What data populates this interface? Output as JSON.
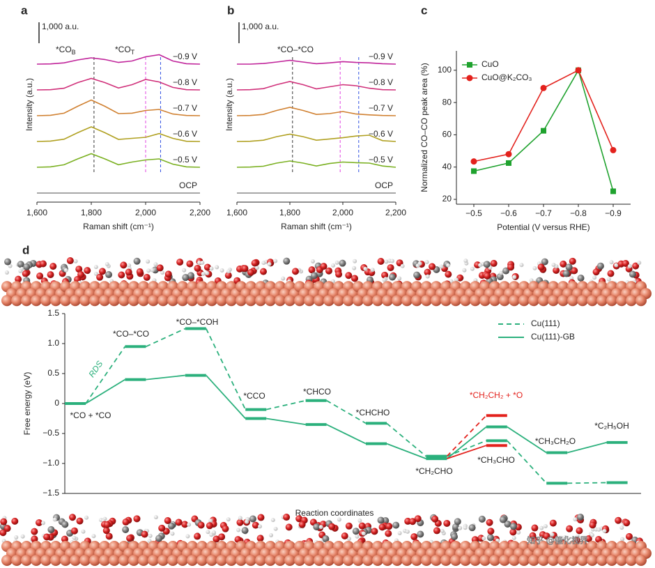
{
  "chart_data": [
    {
      "panel": "a",
      "type": "spectra",
      "x": [
        1600,
        1650,
        1700,
        1750,
        1800,
        1850,
        1900,
        1950,
        2000,
        2050,
        2100,
        2150,
        2200
      ],
      "xlim": [
        1600,
        2200
      ],
      "xticks": [
        {
          "value": 1600,
          "label": "1,600"
        },
        {
          "value": 1800,
          "label": "1,800"
        },
        {
          "value": 2000,
          "label": "2,000"
        },
        {
          "value": 2200,
          "label": "2,200"
        }
      ],
      "x_label": "Raman shift (cm⁻¹)",
      "y_label": "Intensity (a.u.)",
      "scale_bar": {
        "value": 1000,
        "label": "1,000 a.u."
      },
      "traces": [
        {
          "name": "−0.9 V",
          "color": "#c0239a",
          "values": [
            0,
            10,
            60,
            200,
            300,
            220,
            80,
            150,
            350,
            450,
            150,
            20,
            0
          ]
        },
        {
          "name": "−0.8 V",
          "color": "#d0307a",
          "values": [
            0,
            10,
            80,
            350,
            550,
            350,
            90,
            250,
            500,
            380,
            120,
            10,
            0
          ]
        },
        {
          "name": "−0.7 V",
          "color": "#d08030",
          "values": [
            0,
            20,
            120,
            450,
            750,
            450,
            100,
            120,
            250,
            300,
            80,
            10,
            0
          ]
        },
        {
          "name": "−0.6 V",
          "color": "#b0a020",
          "values": [
            0,
            20,
            110,
            420,
            700,
            420,
            100,
            150,
            200,
            380,
            150,
            10,
            0
          ]
        },
        {
          "name": "−0.5 V",
          "color": "#7ab020",
          "values": [
            0,
            20,
            120,
            400,
            650,
            400,
            120,
            250,
            350,
            400,
            150,
            20,
            0
          ]
        },
        {
          "name": "OCP",
          "color": "#888888",
          "values": [
            0,
            0,
            0,
            0,
            0,
            0,
            0,
            0,
            0,
            0,
            0,
            0,
            0
          ]
        }
      ],
      "guides": [
        {
          "x": 1810,
          "color": "#333333"
        },
        {
          "x": 2000,
          "color": "#e040e0"
        },
        {
          "x": 2055,
          "color": "#3050e0"
        }
      ],
      "annotations": [
        {
          "text": "*CO",
          "sub": "B"
        },
        {
          "text": "*CO",
          "sub": "T"
        }
      ]
    },
    {
      "panel": "b",
      "type": "spectra",
      "x": [
        1600,
        1650,
        1700,
        1750,
        1800,
        1850,
        1900,
        1950,
        2000,
        2050,
        2100,
        2150,
        2200
      ],
      "xlim": [
        1600,
        2200
      ],
      "xticks": [
        {
          "value": 1600,
          "label": "1,600"
        },
        {
          "value": 1800,
          "label": "1,800"
        },
        {
          "value": 2000,
          "label": "2,000"
        },
        {
          "value": 2200,
          "label": "2,200"
        }
      ],
      "x_label": "Raman shift (cm⁻¹)",
      "y_label": "Intensity (a.u.)",
      "scale_bar": {
        "value": 1000,
        "label": "1,000 a.u."
      },
      "traces": [
        {
          "name": "−0.9 V",
          "color": "#c0239a",
          "values": [
            0,
            0,
            30,
            100,
            180,
            100,
            20,
            60,
            120,
            80,
            60,
            20,
            0
          ]
        },
        {
          "name": "−0.8 V",
          "color": "#d0307a",
          "values": [
            0,
            10,
            60,
            250,
            400,
            250,
            50,
            150,
            250,
            200,
            80,
            10,
            0
          ]
        },
        {
          "name": "−0.7 V",
          "color": "#d08030",
          "values": [
            0,
            10,
            60,
            250,
            400,
            250,
            60,
            100,
            200,
            80,
            40,
            10,
            0
          ]
        },
        {
          "name": "−0.6 V",
          "color": "#b0a020",
          "values": [
            0,
            10,
            60,
            230,
            350,
            230,
            60,
            120,
            180,
            260,
            300,
            40,
            0
          ]
        },
        {
          "name": "−0.5 V",
          "color": "#7ab020",
          "values": [
            0,
            10,
            50,
            200,
            300,
            200,
            60,
            180,
            250,
            220,
            200,
            60,
            0
          ]
        },
        {
          "name": "OCP",
          "color": "#888888",
          "values": [
            0,
            0,
            0,
            0,
            0,
            0,
            0,
            0,
            0,
            0,
            0,
            0,
            0
          ]
        }
      ],
      "guides": [
        {
          "x": 1810,
          "color": "#333333"
        },
        {
          "x": 1990,
          "color": "#e040e0"
        },
        {
          "x": 2060,
          "color": "#3050e0"
        }
      ],
      "annotations": [
        {
          "text": "*CO–*CO"
        }
      ]
    },
    {
      "panel": "c",
      "type": "line",
      "categories": [
        "−0.5",
        "−0.6",
        "−0.7",
        "−0.8",
        "−0.9"
      ],
      "ylim": [
        17,
        112
      ],
      "yticks": [
        20,
        40,
        60,
        80,
        100
      ],
      "y_label": "Normalized CO–CO peak area (%)",
      "x_label": "Potential (V versus RHE)",
      "legend": "upper left",
      "series": [
        {
          "name": "CuO",
          "color": "#1fa22e",
          "marker": "square",
          "values": [
            37.5,
            42.5,
            62.5,
            100,
            25
          ]
        },
        {
          "name": "CuO@K₂CO₃",
          "color": "#e3211c",
          "marker": "circle",
          "values": [
            43.5,
            48,
            89,
            100,
            50.5
          ]
        }
      ]
    },
    {
      "panel": "d",
      "type": "energy",
      "categories": [
        "*CO + *CO",
        "*CO–*CO",
        "*CO–*COH",
        "*CCO",
        "*CHCO",
        "*CHCHO",
        "*CH₂CHO",
        "*CH₃CHO",
        "*CH₃CH₂O",
        "*C₂H₅OH"
      ],
      "ylim": [
        -1.5,
        1.5
      ],
      "yticks": [
        {
          "value": -1.5,
          "label": "−1.5"
        },
        {
          "value": -1,
          "label": "−1.0"
        },
        {
          "value": -0.5,
          "label": "−0.5"
        },
        0,
        0.5,
        {
          "value": 1,
          "label": "1.0"
        },
        1.5
      ],
      "y_label": "Free energy (eV)",
      "x_label": "Reaction coordinates",
      "legend": "upper right",
      "annotation": "RDS",
      "branch_label": "*CH₂CH₂ + *O",
      "branch_color": "#e3211c",
      "series": [
        {
          "name": "Cu(111)",
          "color": "#2bb07c",
          "dashed": true,
          "values": [
            0,
            0.95,
            1.25,
            -0.1,
            0.05,
            -0.33,
            -0.88,
            -0.62,
            -1.33,
            -1.32
          ],
          "branch_values": [
            null,
            null,
            null,
            null,
            null,
            null,
            null,
            -0.2,
            null,
            null
          ]
        },
        {
          "name": "Cu(111)-GB",
          "color": "#2bb07c",
          "dashed": false,
          "values": [
            0,
            0.4,
            0.47,
            -0.25,
            -0.35,
            -0.67,
            -0.92,
            -0.39,
            -0.82,
            -0.65
          ],
          "branch_values": [
            null,
            null,
            null,
            null,
            null,
            null,
            null,
            -0.7,
            null,
            null
          ]
        }
      ]
    }
  ],
  "watermark": "知乎 @催化视界"
}
